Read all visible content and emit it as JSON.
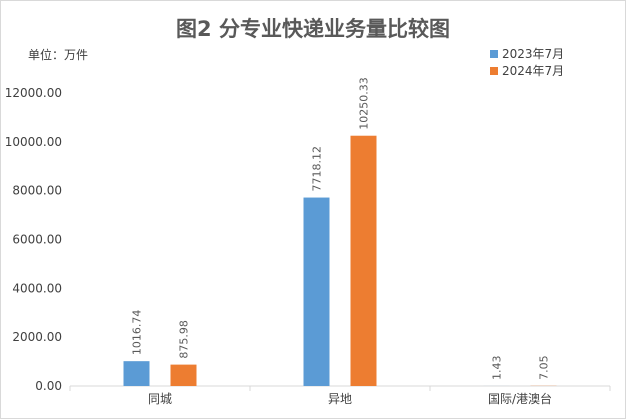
{
  "chart_data": {
    "type": "bar",
    "title": "图2 分专业快递业务量比较图",
    "unit_label": "单位：万件",
    "categories": [
      "同城",
      "异地",
      "国际/港澳台"
    ],
    "series": [
      {
        "name": "2023年7月",
        "color": "#5B9BD5",
        "values": [
          1016.74,
          7718.12,
          1.43
        ],
        "labels": [
          "1016.74",
          "7718.12",
          "1.43"
        ]
      },
      {
        "name": "2024年7月",
        "color": "#ED7D31",
        "values": [
          875.98,
          10250.33,
          7.05
        ],
        "labels": [
          "875.98",
          "10250.33",
          "7.05"
        ]
      }
    ],
    "ylim": [
      0,
      12000
    ],
    "yticks": [
      0,
      2000,
      4000,
      6000,
      8000,
      10000,
      12000
    ],
    "ytick_labels": [
      "0.00",
      "2000.00",
      "4000.00",
      "6000.00",
      "8000.00",
      "10000.00",
      "12000.00"
    ],
    "grid": false,
    "legend_position": "top-right"
  }
}
